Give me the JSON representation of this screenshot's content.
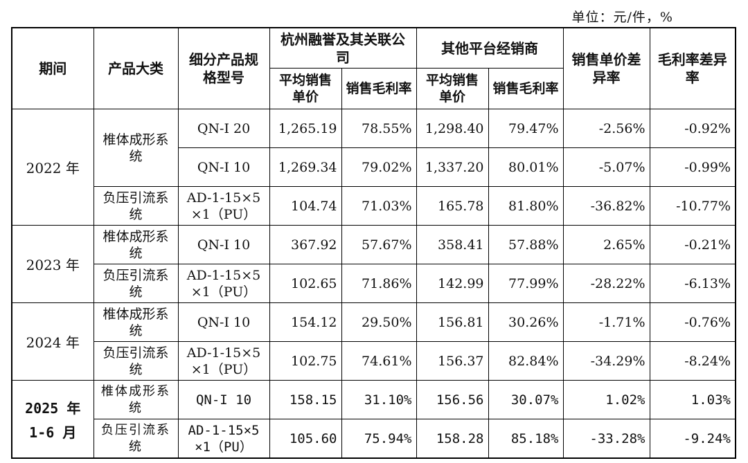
{
  "unit": "单位：元/件，%",
  "headers": {
    "period": "期间",
    "category": "产品大类",
    "model": "细分产品规格型号",
    "hangzhou": "杭州融誉及其关联公司",
    "others": "其他平台经销商",
    "price_diff": "销售单价差异率",
    "margin_diff": "毛利率差异率",
    "avg_price": "平均销售单价",
    "gross_margin": "销售毛利率"
  },
  "periods": {
    "p2022": "2022 年",
    "p2023": "2023 年",
    "p2024": "2024 年",
    "p2025a": "2025 年",
    "p2025b": "1-6 月"
  },
  "rows": [
    {
      "cat": "椎体成形系统",
      "model": "QN-I 20",
      "hz_price": "1,265.19",
      "hz_margin": "78.55%",
      "ot_price": "1,298.40",
      "ot_margin": "79.47%",
      "price_diff": "-2.56%",
      "margin_diff": "-0.92%"
    },
    {
      "cat": "",
      "model": "QN-I 10",
      "hz_price": "1,269.34",
      "hz_margin": "79.02%",
      "ot_price": "1,337.20",
      "ot_margin": "80.01%",
      "price_diff": "-5.07%",
      "margin_diff": "-0.99%"
    },
    {
      "cat": "负压引流系统",
      "model": "AD-1-15×5 ×1（PU）",
      "hz_price": "104.74",
      "hz_margin": "71.03%",
      "ot_price": "165.78",
      "ot_margin": "81.80%",
      "price_diff": "-36.82%",
      "margin_diff": "-10.77%"
    },
    {
      "cat": "椎体成形系统",
      "model": "QN-I 10",
      "hz_price": "367.92",
      "hz_margin": "57.67%",
      "ot_price": "358.41",
      "ot_margin": "57.88%",
      "price_diff": "2.65%",
      "margin_diff": "-0.21%"
    },
    {
      "cat": "负压引流系统",
      "model": "AD-1-15×5 ×1（PU）",
      "hz_price": "102.65",
      "hz_margin": "71.86%",
      "ot_price": "142.99",
      "ot_margin": "77.99%",
      "price_diff": "-28.22%",
      "margin_diff": "-6.13%"
    },
    {
      "cat": "椎体成形系统",
      "model": "QN-I 10",
      "hz_price": "154.12",
      "hz_margin": "29.50%",
      "ot_price": "156.81",
      "ot_margin": "30.26%",
      "price_diff": "-1.71%",
      "margin_diff": "-0.76%"
    },
    {
      "cat": "负压引流系统",
      "model": "AD-1-15×5 ×1（PU）",
      "hz_price": "102.75",
      "hz_margin": "74.61%",
      "ot_price": "156.37",
      "ot_margin": "82.84%",
      "price_diff": "-34.29%",
      "margin_diff": "-8.24%"
    },
    {
      "cat": "椎体成形系统",
      "model": "QN-I 10",
      "hz_price": "158.15",
      "hz_margin": "31.10%",
      "ot_price": "156.56",
      "ot_margin": "30.07%",
      "price_diff": "1.02%",
      "margin_diff": "1.03%"
    },
    {
      "cat": "负压引流系统",
      "model": "AD-1-15×5 ×1（PU）",
      "hz_price": "105.60",
      "hz_margin": "75.94%",
      "ot_price": "158.28",
      "ot_margin": "85.18%",
      "price_diff": "-33.28%",
      "margin_diff": "-9.24%"
    }
  ]
}
